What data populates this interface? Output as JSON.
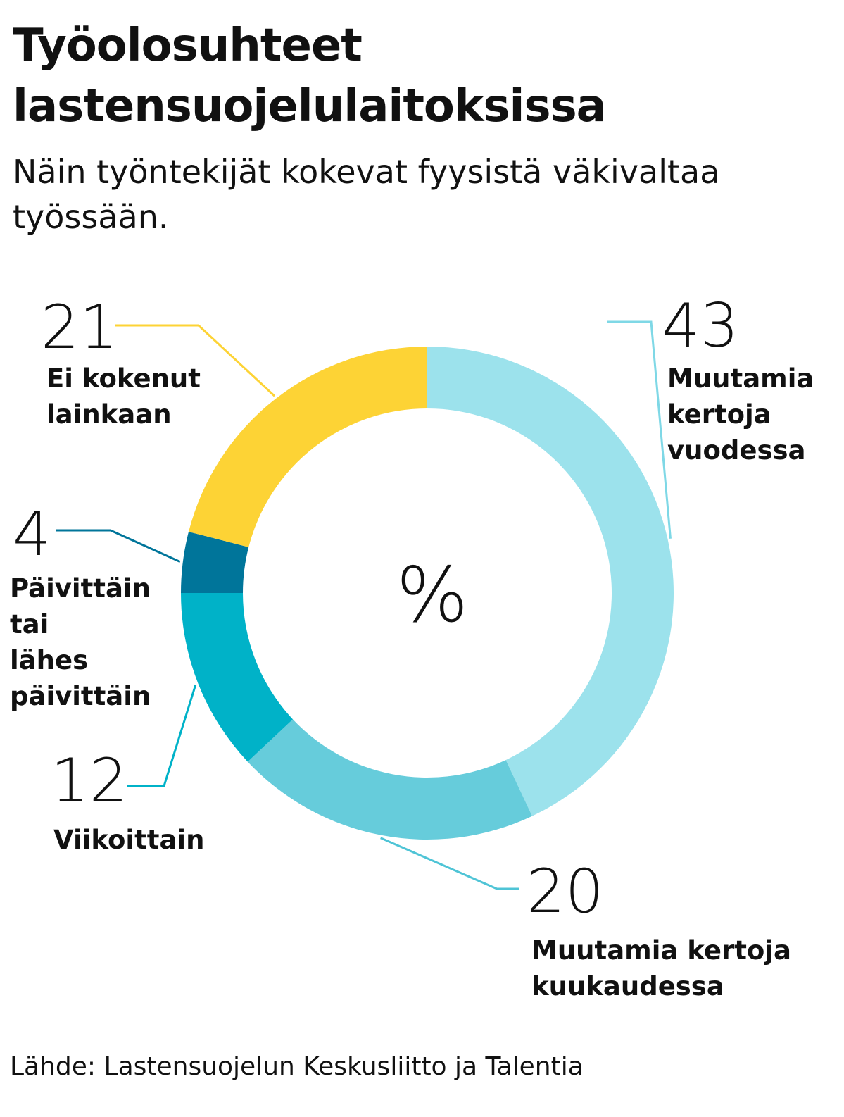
{
  "title": "Työolosuhteet lastensuojelulaitoksissa",
  "subtitle": "Näin työntekijät kokevat fyysistä väkivaltaa työssään.",
  "source": "Lähde: Lastensuojelun Keskusliitto ja Talentia",
  "chart_data": {
    "type": "pie",
    "donut": true,
    "unit": "%",
    "slices": [
      {
        "label": "Muutamia kertoja vuodessa",
        "value": 43,
        "color": "#9ce2ec"
      },
      {
        "label": "Muutamia kertoja kuukaudessa",
        "value": 20,
        "color": "#66ccdb"
      },
      {
        "label": "Viikoittain",
        "value": 12,
        "color": "#00b2c8"
      },
      {
        "label": "Päivittäin tai lähes päivittäin",
        "value": 4,
        "color": "#00759a"
      },
      {
        "label": "Ei kokenut lainkaan",
        "value": 21,
        "color": "#fdd335"
      }
    ]
  }
}
